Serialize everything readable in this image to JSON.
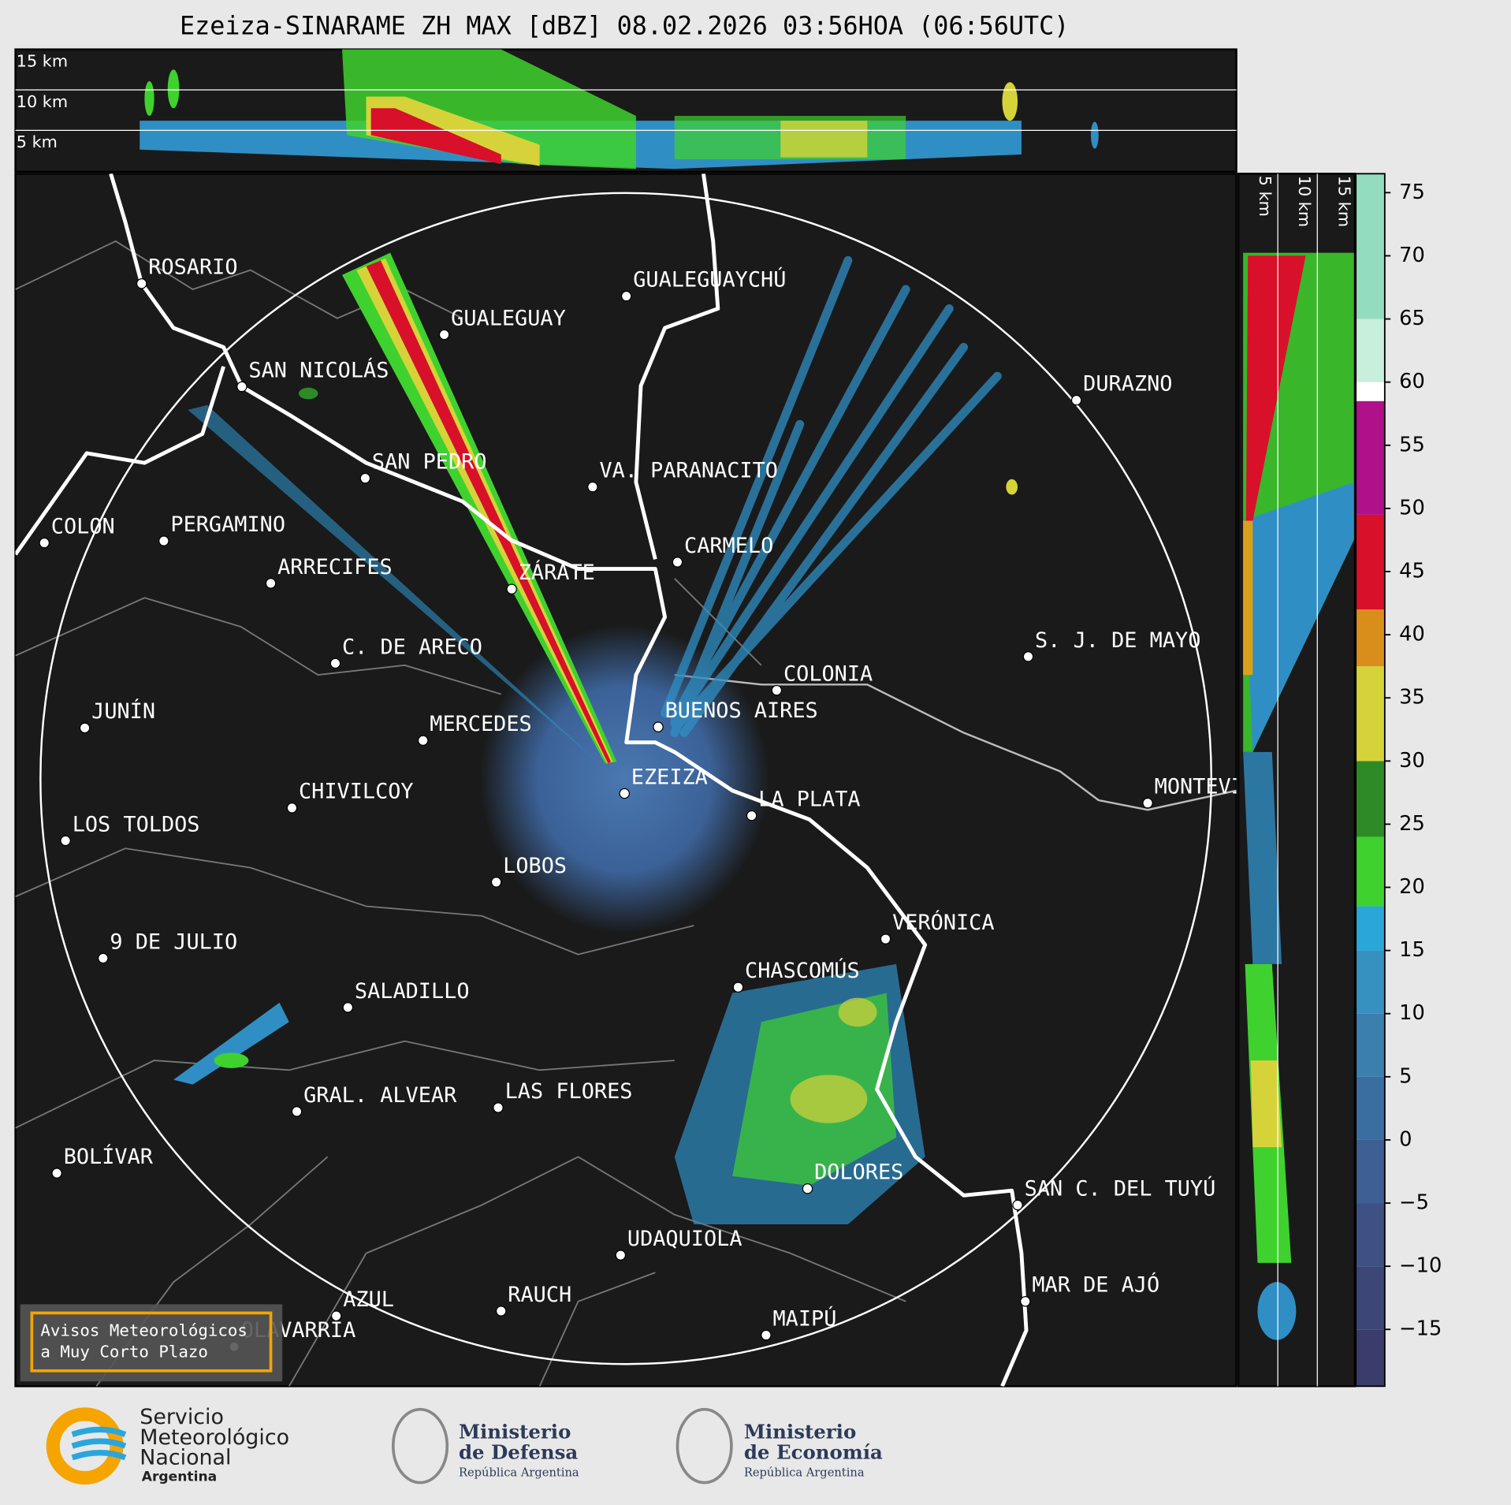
{
  "title": "Ezeiza-SINARAME ZH MAX [dBZ] 08.02.2026 03:56HOA (06:56UTC)",
  "top_profile_labels": [
    "15 km",
    "10 km",
    "5 km"
  ],
  "side_profile_labels": [
    "5 km",
    "10 km",
    "15 km"
  ],
  "cities": [
    "ROSARIO",
    "GUALEGUAYCHÚ",
    "GUALEGUAY",
    "SAN NICOLÁS",
    "DURAZNO",
    "SAN PEDRO",
    "VA. PARANACITO",
    "COLON",
    "PERGAMINO",
    "CARMELO",
    "ARRECIFES",
    "ZÁRATE",
    "C. DE ARECO",
    "S. J. DE MAYO",
    "COLONIA",
    "JUNÍN",
    "BUENOS AIRES",
    "MERCEDES",
    "EZEIZA",
    "MONTEVIDEO",
    "CHIVILCOY",
    "LA PLATA",
    "LOS TOLDOS",
    "LOBOS",
    "VERÓNICA",
    "9 DE JULIO",
    "CHASCOMÚS",
    "SALADILLO",
    "GRAL. ALVEAR",
    "LAS FLORES",
    "BOLÍVAR",
    "DOLORES",
    "SAN C. DEL TUYÚ",
    "UDAQUIOLA",
    "MAR DE AJÓ",
    "RAUCH",
    "AZUL",
    "OLAVARRÍA",
    "MAIPÚ"
  ],
  "warning_box": [
    "Avisos Meteorológicos",
    "a Muy Corto Plazo"
  ],
  "colorbar": {
    "lim": [
      -19.5,
      76.5
    ],
    "ticks": [
      {
        "value": -15,
        "label": "−15"
      },
      {
        "value": -10,
        "label": "−10"
      },
      {
        "value": -5,
        "label": "−5"
      },
      0,
      5,
      10,
      15,
      20,
      25,
      30,
      35,
      40,
      45,
      50,
      55,
      60,
      65,
      70,
      75
    ],
    "bands": [
      {
        "from": -19.5,
        "to": -15,
        "color": "#3a3d6b"
      },
      {
        "from": -15,
        "to": -10,
        "color": "#3c4677"
      },
      {
        "from": -10,
        "to": -5,
        "color": "#3d5184"
      },
      {
        "from": -5,
        "to": 0,
        "color": "#3d5f93"
      },
      {
        "from": 0,
        "to": 5,
        "color": "#3b6ea0"
      },
      {
        "from": 5,
        "to": 10,
        "color": "#3a7fae"
      },
      {
        "from": 10,
        "to": 15,
        "color": "#3690c0"
      },
      {
        "from": 15,
        "to": 18.5,
        "color": "#2ba6d9"
      },
      {
        "from": 18.5,
        "to": 24,
        "color": "#3fd22e"
      },
      {
        "from": 24,
        "to": 30,
        "color": "#2e8a26"
      },
      {
        "from": 30,
        "to": 37.5,
        "color": "#d6d33a"
      },
      {
        "from": 37.5,
        "to": 42,
        "color": "#d98e1c"
      },
      {
        "from": 42,
        "to": 49.5,
        "color": "#d8102a"
      },
      {
        "from": 49.5,
        "to": 58.5,
        "color": "#b0108a"
      },
      {
        "from": 58.5,
        "to": 60,
        "color": "#ffffff"
      },
      {
        "from": 60,
        "to": 65,
        "color": "#c8eedc"
      },
      {
        "from": 65,
        "to": 76.5,
        "color": "#93dcbf"
      }
    ]
  },
  "footer": {
    "smn": [
      "Servicio",
      "Meteorológico",
      "Nacional",
      "Argentina"
    ],
    "defensa": [
      "Ministerio",
      "de Defensa",
      "República Argentina"
    ],
    "economia": [
      "Ministerio",
      "de Economía",
      "República Argentina"
    ]
  }
}
